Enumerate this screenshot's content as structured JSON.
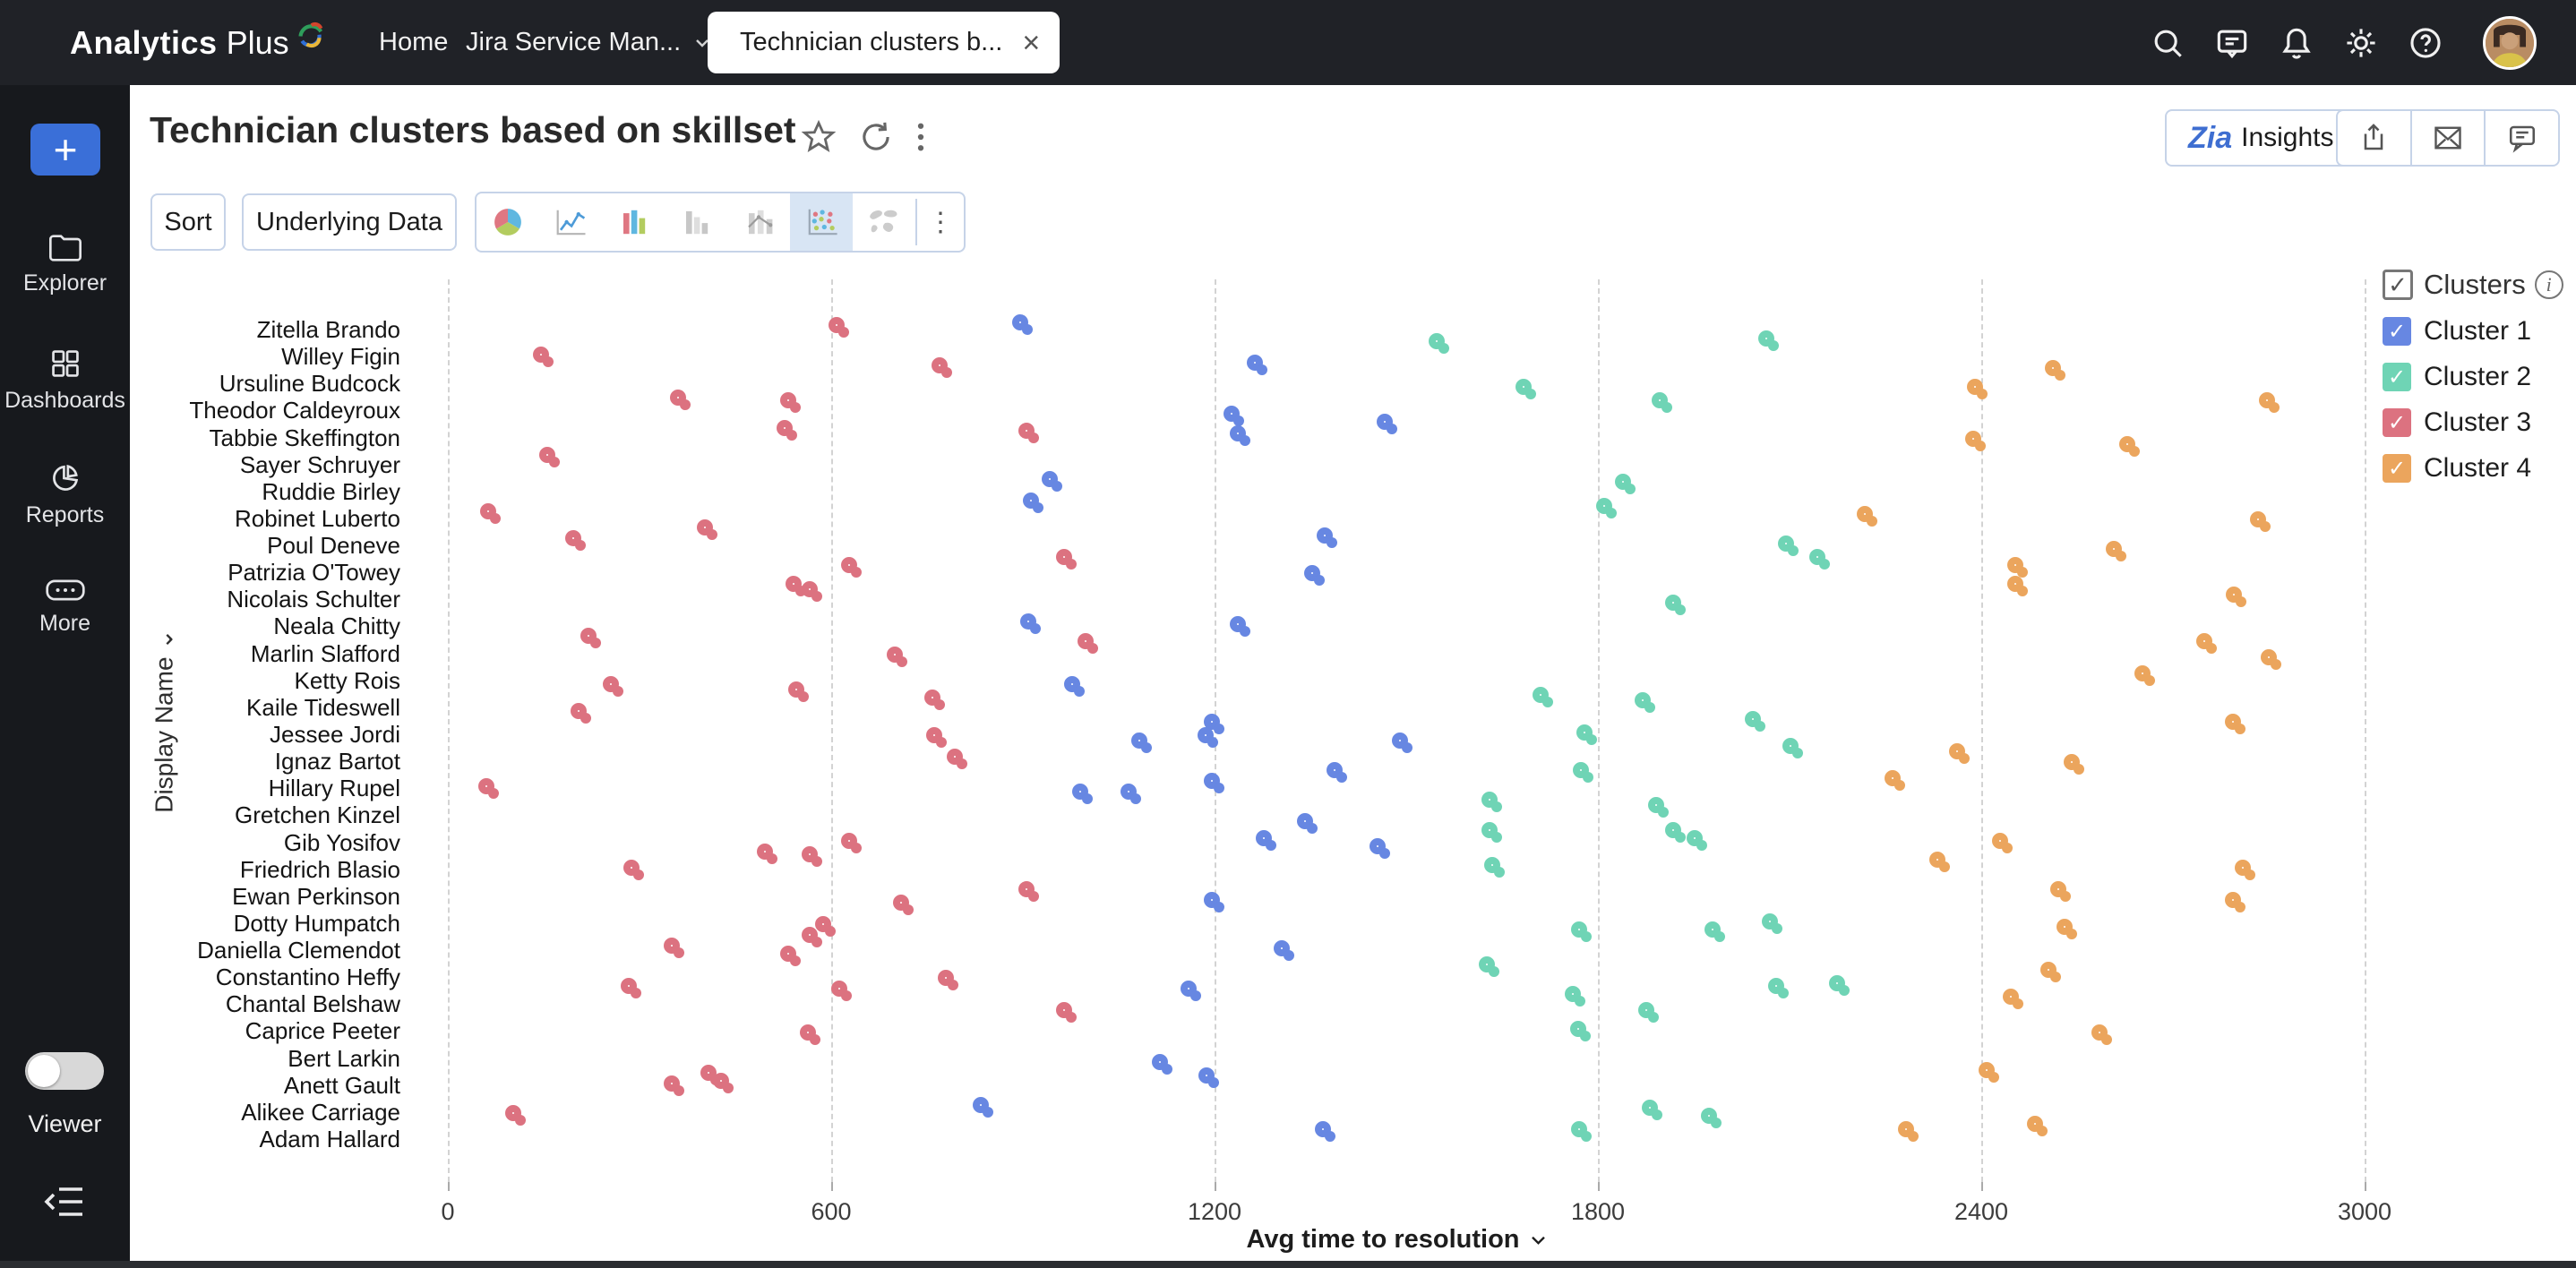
{
  "topbar": {
    "logo": {
      "part1": "Analytics",
      "part2": "Plus"
    },
    "tabs": [
      {
        "label": "Home"
      },
      {
        "label": "Jira Service Man..."
      },
      {
        "label": "Technician clusters b...",
        "active": true
      }
    ],
    "icons": [
      "search-icon",
      "feedback-icon",
      "notifications-icon",
      "settings-icon",
      "help-icon",
      "avatar"
    ]
  },
  "glyphs": {
    "close": "×",
    "caret_down": "⌄",
    "check": "✓",
    "kebab": "⋮",
    "plus": "+",
    "info": "i"
  },
  "sidebar": {
    "items": [
      {
        "label": "Explorer",
        "icon": "folder-icon"
      },
      {
        "label": "Dashboards",
        "icon": "grid-icon"
      },
      {
        "label": "Reports",
        "icon": "pie-icon"
      },
      {
        "label": "More",
        "icon": "ellipsis-icon"
      }
    ],
    "viewer_label": "Viewer",
    "viewer_toggle_state": "off"
  },
  "header": {
    "title": "Technician clusters based on skillset"
  },
  "toolbar": {
    "sort_label": "Sort",
    "underlying_label": "Underlying Data",
    "chart_types": [
      "pie-chart-icon",
      "line-chart-icon",
      "bar-chart-icon",
      "stacked-bar-icon",
      "bar-line-icon",
      "scatter-chart-icon",
      "map-chart-icon"
    ],
    "selected_chart_type": "scatter-chart-icon"
  },
  "actions": {
    "insights_brand": "Zia",
    "insights_label": "Insights",
    "icons": [
      "share-icon",
      "email-icon",
      "comment-icon"
    ]
  },
  "legend": {
    "title": "Clusters",
    "items": [
      {
        "label": "Cluster 1",
        "color": "#6787e2",
        "checked": true
      },
      {
        "label": "Cluster 2",
        "color": "#6fd4b5",
        "checked": true
      },
      {
        "label": "Cluster 3",
        "color": "#dc7280",
        "checked": true
      },
      {
        "label": "Cluster 4",
        "color": "#eba55d",
        "checked": true
      }
    ]
  },
  "chart_data": {
    "type": "scatter",
    "title": "Technician clusters based on skillset",
    "xlabel": "Avg time to resolution",
    "ylabel": "Display Name",
    "xlim": [
      0,
      3000
    ],
    "x_ticks": [
      0,
      600,
      1200,
      1800,
      2400,
      3000
    ],
    "grid": "vertical-dashed",
    "legend_position": "top-right",
    "y_note": "categorical axis, row index 0 = top name; point y values are fractional row positions read from the plot",
    "categories": [
      "Zitella Brando",
      "Willey Figin",
      "Ursuline Budcock",
      "Theodor Caldeyroux",
      "Tabbie Skeffington",
      "Sayer Schruyer",
      "Ruddie Birley",
      "Robinet Luberto",
      "Poul Deneve",
      "Patrizia O'Towey",
      "Nicolais Schulter",
      "Neala Chitty",
      "Marlin Slafford",
      "Ketty Rois",
      "Kaile Tideswell",
      "Jessee Jordi",
      "Ignaz Bartot",
      "Hillary Rupel",
      "Gretchen Kinzel",
      "Gib Yosifov",
      "Friedrich Blasio",
      "Ewan Perkinson",
      "Dotty Humpatch",
      "Daniella Clemendot",
      "Constantino Heffy",
      "Chantal Belshaw",
      "Caprice Peeter",
      "Bert Larkin",
      "Anett Gault",
      "Alikee Carriage",
      "Adam Hallard"
    ],
    "series": [
      {
        "name": "Cluster 1",
        "color": "#6787e2",
        "points": [
          [
            907,
            0.0
          ],
          [
            1274,
            1.5
          ],
          [
            1238,
            3.4
          ],
          [
            1248,
            4.1
          ],
          [
            1477,
            3.7
          ],
          [
            953,
            5.8
          ],
          [
            924,
            6.6
          ],
          [
            1384,
            7.9
          ],
          [
            1364,
            9.3
          ],
          [
            919,
            11.1
          ],
          [
            1248,
            11.2
          ],
          [
            989,
            13.4
          ],
          [
            1207,
            14.8
          ],
          [
            1197,
            15.3
          ],
          [
            1094,
            15.5
          ],
          [
            1502,
            15.5
          ],
          [
            1399,
            16.6
          ],
          [
            1076,
            17.4
          ],
          [
            1207,
            17.0
          ],
          [
            1001,
            17.4
          ],
          [
            1353,
            18.5
          ],
          [
            1289,
            19.1
          ],
          [
            1466,
            19.4
          ],
          [
            1207,
            21.4
          ],
          [
            1317,
            23.2
          ],
          [
            1171,
            24.7
          ],
          [
            1125,
            27.4
          ],
          [
            1199,
            27.9
          ],
          [
            845,
            29.0
          ],
          [
            1381,
            29.9
          ]
        ]
      },
      {
        "name": "Cluster 2",
        "color": "#6fd4b5",
        "points": [
          [
            1559,
            0.7
          ],
          [
            2075,
            0.6
          ],
          [
            1695,
            2.4
          ],
          [
            1908,
            2.9
          ],
          [
            1851,
            5.9
          ],
          [
            1821,
            6.8
          ],
          [
            2106,
            8.2
          ],
          [
            2155,
            8.7
          ],
          [
            1929,
            10.4
          ],
          [
            1721,
            13.8
          ],
          [
            1882,
            14.0
          ],
          [
            2054,
            14.7
          ],
          [
            1790,
            15.2
          ],
          [
            2113,
            15.7
          ],
          [
            1785,
            16.6
          ],
          [
            1641,
            17.7
          ],
          [
            1903,
            17.9
          ],
          [
            1929,
            18.8
          ],
          [
            1641,
            18.8
          ],
          [
            1962,
            19.1
          ],
          [
            1646,
            20.1
          ],
          [
            2080,
            22.2
          ],
          [
            1782,
            22.5
          ],
          [
            1990,
            22.5
          ],
          [
            1638,
            23.8
          ],
          [
            2185,
            24.5
          ],
          [
            2090,
            24.6
          ],
          [
            1772,
            24.9
          ],
          [
            1887,
            25.5
          ],
          [
            1780,
            26.2
          ],
          [
            1893,
            29.1
          ],
          [
            1985,
            29.4
          ],
          [
            1782,
            29.9
          ]
        ]
      },
      {
        "name": "Cluster 3",
        "color": "#dc7280",
        "points": [
          [
            619,
            0.1
          ],
          [
            157,
            1.2
          ],
          [
            781,
            1.6
          ],
          [
            372,
            2.8
          ],
          [
            544,
            2.9
          ],
          [
            539,
            3.9
          ],
          [
            917,
            4.0
          ],
          [
            167,
            4.9
          ],
          [
            74,
            7.0
          ],
          [
            413,
            7.6
          ],
          [
            208,
            8.0
          ],
          [
            976,
            8.7
          ],
          [
            639,
            9.0
          ],
          [
            552,
            9.7
          ],
          [
            578,
            9.9
          ],
          [
            231,
            11.6
          ],
          [
            1009,
            11.8
          ],
          [
            711,
            12.3
          ],
          [
            267,
            13.4
          ],
          [
            557,
            13.6
          ],
          [
            770,
            13.9
          ],
          [
            216,
            14.4
          ],
          [
            773,
            15.3
          ],
          [
            804,
            16.1
          ],
          [
            72,
            17.2
          ],
          [
            639,
            19.2
          ],
          [
            508,
            19.6
          ],
          [
            578,
            19.7
          ],
          [
            298,
            20.2
          ],
          [
            917,
            21.0
          ],
          [
            721,
            21.5
          ],
          [
            598,
            22.3
          ],
          [
            578,
            22.7
          ],
          [
            362,
            23.1
          ],
          [
            544,
            23.4
          ],
          [
            791,
            24.3
          ],
          [
            295,
            24.6
          ],
          [
            624,
            24.7
          ],
          [
            976,
            25.5
          ],
          [
            575,
            26.3
          ],
          [
            419,
            27.8
          ],
          [
            439,
            28.1
          ],
          [
            362,
            28.2
          ],
          [
            113,
            29.3
          ]
        ]
      },
      {
        "name": "Cluster 4",
        "color": "#eba55d",
        "points": [
          [
            2524,
            1.7
          ],
          [
            2401,
            2.4
          ],
          [
            2858,
            2.9
          ],
          [
            2398,
            4.3
          ],
          [
            2640,
            4.5
          ],
          [
            2229,
            7.1
          ],
          [
            2845,
            7.3
          ],
          [
            2619,
            8.4
          ],
          [
            2465,
            9.0
          ],
          [
            2465,
            9.7
          ],
          [
            2807,
            10.1
          ],
          [
            2760,
            11.8
          ],
          [
            2861,
            12.4
          ],
          [
            2663,
            13.0
          ],
          [
            2805,
            14.8
          ],
          [
            2373,
            15.9
          ],
          [
            2553,
            16.3
          ],
          [
            2273,
            16.9
          ],
          [
            2440,
            19.2
          ],
          [
            2342,
            19.9
          ],
          [
            2820,
            20.2
          ],
          [
            2532,
            21.0
          ],
          [
            2805,
            21.4
          ],
          [
            2542,
            22.4
          ],
          [
            2517,
            24.0
          ],
          [
            2458,
            25.0
          ],
          [
            2596,
            26.3
          ],
          [
            2419,
            27.7
          ],
          [
            2496,
            29.7
          ],
          [
            2293,
            29.9
          ]
        ]
      }
    ]
  }
}
